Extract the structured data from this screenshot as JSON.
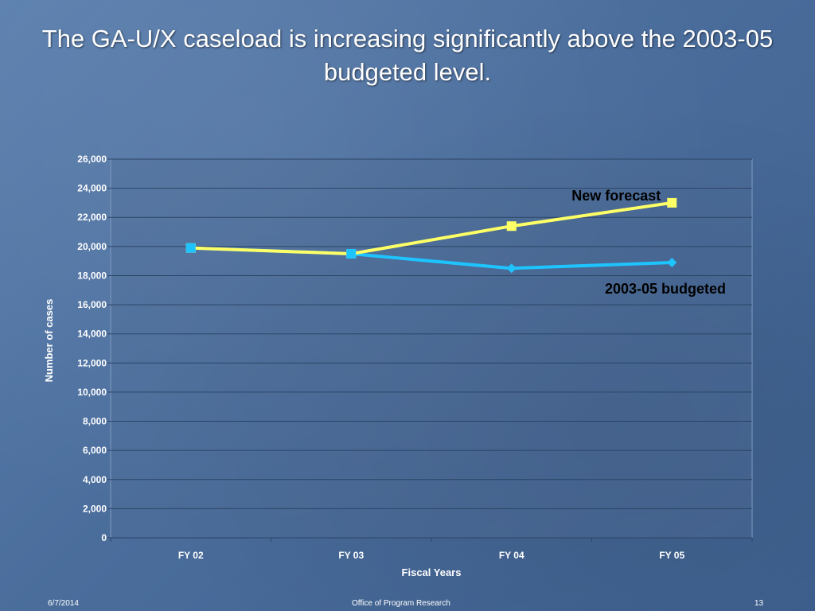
{
  "slide": {
    "title": "The GA-U/X caseload is increasing significantly above the 2003-05 budgeted level."
  },
  "footer": {
    "date": "6/7/2014",
    "source": "Office of Program Research",
    "page": "13"
  },
  "chart_data": {
    "type": "line",
    "categories": [
      "FY 02",
      "FY 03",
      "FY 04",
      "FY 05"
    ],
    "xlabel": "Fiscal Years",
    "ylabel": "Number of cases",
    "ylim": [
      0,
      26000
    ],
    "ytick_step": 2000,
    "ytick_labels": [
      "0",
      "2,000",
      "4,000",
      "6,000",
      "8,000",
      "10,000",
      "12,000",
      "14,000",
      "16,000",
      "18,000",
      "20,000",
      "22,000",
      "24,000",
      "26,000"
    ],
    "grid": true,
    "series": [
      {
        "name": "New forecast",
        "values": [
          19900,
          19500,
          21400,
          23000
        ],
        "color": "#ffff66",
        "marker": "square"
      },
      {
        "name": "2003-05 budgeted",
        "values": [
          19900,
          19500,
          18500,
          18900
        ],
        "color": "#1ec4ff",
        "marker": "diamond"
      }
    ]
  }
}
